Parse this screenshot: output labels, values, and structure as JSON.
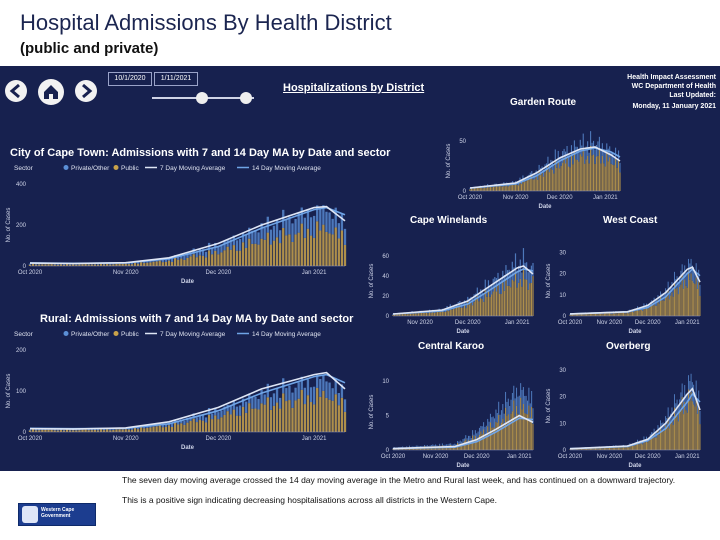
{
  "page": {
    "title": "Hospital Admissions By Health District",
    "subtitle": "(public and private)"
  },
  "dashboard": {
    "date_start": "10/1/2020",
    "date_end": "1/11/2021",
    "heading": "Hospitalizations by District",
    "org_line1": "Health Impact Assessment",
    "org_line2": "WC Department of Health",
    "updated_label": "Last Updated:",
    "updated_date": "Monday, 11 January 2021",
    "legend": {
      "sector_label": "Sector",
      "private": "Private/Other",
      "public": "Public",
      "ma7": "7 Day Moving Average",
      "ma14": "14 Day Moving Average"
    },
    "colors": {
      "background": "#17214f",
      "private": "#5b8fd6",
      "public": "#c9a24a",
      "ma7": "#dfe6f5",
      "ma14": "#6fa4e6"
    },
    "icons": [
      "back-arrow-icon",
      "home-icon",
      "forward-arrow-icon"
    ]
  },
  "footer": {
    "text1": "The seven day moving average crossed the 14 day moving average in the Metro and Rural last week, and has continued on a downward trajectory.",
    "text2": "This is a positive sign indicating decreasing hospitalisations across all districts in the Western Cape.",
    "logo_line1": "Western Cape",
    "logo_line2": "Government"
  },
  "chart_data": [
    {
      "type": "bar",
      "title": "City of Cape Town: Admissions with 7 and 14 Day MA by Date and sector",
      "xlabel": "Date",
      "ylabel": "No. of Cases",
      "yticks": [
        0,
        200,
        400
      ],
      "ylim": [
        0,
        400
      ],
      "xticks": [
        "Oct 2020",
        "Nov 2020",
        "Dec 2020",
        "Jan 2021"
      ],
      "x_start": "2020-10-01",
      "x_end": "2021-01-11",
      "grid": false,
      "legend": "top",
      "series": [
        {
          "name": "Private/Other",
          "style": "stacked-bars",
          "peak_date": "2021-01-04",
          "peak": 110
        },
        {
          "name": "Public",
          "style": "stacked-bars",
          "peak_date": "2021-01-04",
          "peak": 200
        },
        {
          "name": "7 Day Moving Average",
          "points": [
            [
              "2020-10-01",
              14
            ],
            [
              "2020-10-15",
              12
            ],
            [
              "2020-11-01",
              16
            ],
            [
              "2020-11-15",
              40
            ],
            [
              "2020-12-01",
              110
            ],
            [
              "2020-12-15",
              200
            ],
            [
              "2021-01-01",
              285
            ],
            [
              "2021-01-05",
              290
            ],
            [
              "2021-01-11",
              220
            ]
          ]
        },
        {
          "name": "14 Day Moving Average",
          "points": [
            [
              "2020-10-01",
              15
            ],
            [
              "2020-10-15",
              13
            ],
            [
              "2020-11-01",
              15
            ],
            [
              "2020-11-15",
              35
            ],
            [
              "2020-12-01",
              95
            ],
            [
              "2020-12-15",
              185
            ],
            [
              "2021-01-01",
              275
            ],
            [
              "2021-01-05",
              285
            ],
            [
              "2021-01-11",
              250
            ]
          ]
        }
      ]
    },
    {
      "type": "bar",
      "title": "Rural: Admissions with 7 and 14 Day MA by Date and sector",
      "xlabel": "Date",
      "ylabel": "No. of Cases",
      "yticks": [
        0,
        100,
        200
      ],
      "ylim": [
        0,
        200
      ],
      "xticks": [
        "Oct 2020",
        "Nov 2020",
        "Dec 2020",
        "Jan 2021"
      ],
      "x_start": "2020-10-01",
      "x_end": "2021-01-11",
      "grid": false,
      "legend": "top",
      "series": [
        {
          "name": "Private/Other",
          "style": "stacked-bars",
          "peak_date": "2021-01-04",
          "peak": 45
        },
        {
          "name": "Public",
          "style": "stacked-bars",
          "peak_date": "2021-01-04",
          "peak": 100
        },
        {
          "name": "7 Day Moving Average",
          "points": [
            [
              "2020-10-01",
              8
            ],
            [
              "2020-10-15",
              7
            ],
            [
              "2020-11-01",
              10
            ],
            [
              "2020-11-15",
              25
            ],
            [
              "2020-12-01",
              60
            ],
            [
              "2020-12-15",
              105
            ],
            [
              "2021-01-01",
              140
            ],
            [
              "2021-01-05",
              145
            ],
            [
              "2021-01-11",
              105
            ]
          ]
        },
        {
          "name": "14 Day Moving Average",
          "points": [
            [
              "2020-10-01",
              9
            ],
            [
              "2020-10-15",
              8
            ],
            [
              "2020-11-01",
              9
            ],
            [
              "2020-11-15",
              20
            ],
            [
              "2020-12-01",
              52
            ],
            [
              "2020-12-15",
              95
            ],
            [
              "2021-01-01",
              135
            ],
            [
              "2021-01-05",
              140
            ],
            [
              "2021-01-11",
              120
            ]
          ]
        }
      ]
    },
    {
      "type": "bar",
      "title": "Garden Route",
      "xlabel": "Date",
      "ylabel": "No. of Cases",
      "yticks": [
        0,
        50
      ],
      "ylim": [
        0,
        60
      ],
      "xticks": [
        "Oct 2020",
        "Nov 2020",
        "Dec 2020",
        "Jan 2021"
      ],
      "x_start": "2020-10-01",
      "x_end": "2021-01-11",
      "series": [
        {
          "name": "Private/Other",
          "style": "stacked-bars",
          "peak_date": "2020-12-18",
          "peak": 15
        },
        {
          "name": "Public",
          "style": "stacked-bars",
          "peak_date": "2020-12-18",
          "peak": 40
        },
        {
          "name": "7 Day Moving Average",
          "points": [
            [
              "2020-10-01",
              3
            ],
            [
              "2020-11-01",
              8
            ],
            [
              "2020-11-15",
              18
            ],
            [
              "2020-12-01",
              33
            ],
            [
              "2020-12-15",
              42
            ],
            [
              "2020-12-25",
              44
            ],
            [
              "2021-01-05",
              36
            ],
            [
              "2021-01-11",
              30
            ]
          ]
        },
        {
          "name": "14 Day Moving Average",
          "points": [
            [
              "2020-10-01",
              3
            ],
            [
              "2020-11-01",
              7
            ],
            [
              "2020-11-15",
              15
            ],
            [
              "2020-12-01",
              30
            ],
            [
              "2020-12-15",
              40
            ],
            [
              "2020-12-25",
              43
            ],
            [
              "2021-01-05",
              39
            ],
            [
              "2021-01-11",
              34
            ]
          ]
        }
      ]
    },
    {
      "type": "bar",
      "title": "Cape Winelands",
      "xlabel": "Date",
      "ylabel": "No. of Cases",
      "yticks": [
        0,
        20,
        40,
        60
      ],
      "ylim": [
        0,
        70
      ],
      "xticks": [
        "Nov 2020",
        "Dec 2020",
        "Jan 2021"
      ],
      "x_start": "2020-10-15",
      "x_end": "2021-01-11",
      "series": [
        {
          "name": "Private/Other",
          "style": "stacked-bars",
          "peak_date": "2021-01-04",
          "peak": 20
        },
        {
          "name": "Public",
          "style": "stacked-bars",
          "peak_date": "2021-01-04",
          "peak": 42
        },
        {
          "name": "7 Day Moving Average",
          "points": [
            [
              "2020-10-15",
              2
            ],
            [
              "2020-11-15",
              6
            ],
            [
              "2020-12-01",
              15
            ],
            [
              "2020-12-15",
              30
            ],
            [
              "2021-01-01",
              48
            ],
            [
              "2021-01-05",
              50
            ],
            [
              "2021-01-11",
              42
            ]
          ]
        },
        {
          "name": "14 Day Moving Average",
          "points": [
            [
              "2020-10-15",
              2
            ],
            [
              "2020-11-15",
              5
            ],
            [
              "2020-12-01",
              12
            ],
            [
              "2020-12-15",
              26
            ],
            [
              "2021-01-01",
              44
            ],
            [
              "2021-01-05",
              47
            ],
            [
              "2021-01-11",
              45
            ]
          ]
        }
      ]
    },
    {
      "type": "bar",
      "title": "West Coast",
      "xlabel": "Date",
      "ylabel": "No. of Cases",
      "yticks": [
        0,
        10,
        20,
        30
      ],
      "ylim": [
        0,
        33
      ],
      "xticks": [
        "Oct 2020",
        "Nov 2020",
        "Dec 2020",
        "Jan 2021"
      ],
      "x_start": "2020-10-01",
      "x_end": "2021-01-11",
      "series": [
        {
          "name": "Private/Other",
          "style": "stacked-bars",
          "peak_date": "2021-01-04",
          "peak": 8
        },
        {
          "name": "Public",
          "style": "stacked-bars",
          "peak_date": "2021-01-04",
          "peak": 20
        },
        {
          "name": "7 Day Moving Average",
          "points": [
            [
              "2020-10-01",
              1
            ],
            [
              "2020-11-15",
              2
            ],
            [
              "2020-12-01",
              5
            ],
            [
              "2020-12-15",
              11
            ],
            [
              "2021-01-01",
              22
            ],
            [
              "2021-01-05",
              23
            ],
            [
              "2021-01-11",
              16
            ]
          ]
        },
        {
          "name": "14 Day Moving Average",
          "points": [
            [
              "2020-10-01",
              1
            ],
            [
              "2020-11-15",
              2
            ],
            [
              "2020-12-01",
              4
            ],
            [
              "2020-12-15",
              9
            ],
            [
              "2021-01-01",
              20
            ],
            [
              "2021-01-05",
              22
            ],
            [
              "2021-01-11",
              19
            ]
          ]
        }
      ]
    },
    {
      "type": "bar",
      "title": "Central Karoo",
      "xlabel": "Date",
      "ylabel": "No. of Cases",
      "yticks": [
        0,
        5,
        10
      ],
      "ylim": [
        0,
        11
      ],
      "xticks": [
        "Oct 2020",
        "Nov 2020",
        "Dec 2020",
        "Jan 2021"
      ],
      "x_start": "2020-10-01",
      "x_end": "2021-01-11",
      "series": [
        {
          "name": "Private/Other",
          "style": "stacked-bars",
          "peak_date": "2020-12-28",
          "peak": 3
        },
        {
          "name": "Public",
          "style": "stacked-bars",
          "peak_date": "2020-12-28",
          "peak": 7
        },
        {
          "name": "7 Day Moving Average",
          "points": [
            [
              "2020-10-01",
              0.2
            ],
            [
              "2020-11-15",
              0.5
            ],
            [
              "2020-12-01",
              1.5
            ],
            [
              "2020-12-15",
              3
            ],
            [
              "2021-01-01",
              5
            ],
            [
              "2021-01-11",
              4
            ]
          ]
        },
        {
          "name": "14 Day Moving Average",
          "points": [
            [
              "2020-10-01",
              0.2
            ],
            [
              "2020-11-15",
              0.4
            ],
            [
              "2020-12-01",
              1.2
            ],
            [
              "2020-12-15",
              2.6
            ],
            [
              "2021-01-01",
              4.6
            ],
            [
              "2021-01-11",
              4.4
            ]
          ]
        }
      ]
    },
    {
      "type": "bar",
      "title": "Overberg",
      "xlabel": "Date",
      "ylabel": "No. of Cases",
      "yticks": [
        0,
        10,
        20,
        30
      ],
      "ylim": [
        0,
        33
      ],
      "xticks": [
        "Oct 2020",
        "Nov 2020",
        "Dec 2020",
        "Jan 2021"
      ],
      "x_start": "2020-10-01",
      "x_end": "2021-01-11",
      "series": [
        {
          "name": "Private/Other",
          "style": "stacked-bars",
          "peak_date": "2021-01-04",
          "peak": 8
        },
        {
          "name": "Public",
          "style": "stacked-bars",
          "peak_date": "2021-01-04",
          "peak": 22
        },
        {
          "name": "7 Day Moving Average",
          "points": [
            [
              "2020-10-01",
              0.5
            ],
            [
              "2020-11-15",
              1.5
            ],
            [
              "2020-12-01",
              4
            ],
            [
              "2020-12-15",
              10
            ],
            [
              "2021-01-01",
              21
            ],
            [
              "2021-01-05",
              23
            ],
            [
              "2021-01-11",
              15
            ]
          ]
        },
        {
          "name": "14 Day Moving Average",
          "points": [
            [
              "2020-10-01",
              0.5
            ],
            [
              "2020-11-15",
              1.3
            ],
            [
              "2020-12-01",
              3.5
            ],
            [
              "2020-12-15",
              8
            ],
            [
              "2021-01-01",
              18
            ],
            [
              "2021-01-05",
              21
            ],
            [
              "2021-01-11",
              18
            ]
          ]
        }
      ]
    }
  ]
}
